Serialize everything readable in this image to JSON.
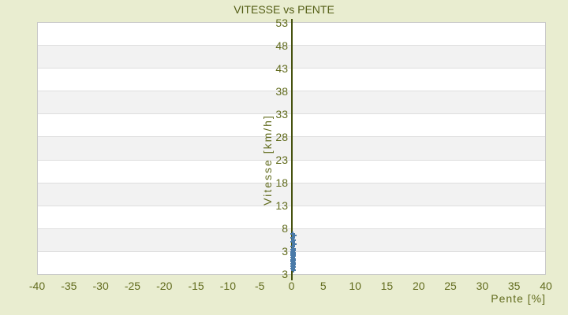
{
  "title": "VITESSE vs PENTE",
  "colors": {
    "background": "#e9edd0",
    "text_olive": "#626c1e",
    "title_olive": "#535d15",
    "axis_line": "#46520f",
    "band_gray": "#f2f2f2",
    "band_white": "#ffffff",
    "plot_border": "#c9c9c9",
    "marker_blue": "#4a7aa8"
  },
  "chart_data": {
    "type": "scatter",
    "title": "VITESSE vs PENTE",
    "xlabel": "Pente [%]",
    "ylabel": "Vitesse [km/h]",
    "xlim": [
      -40,
      40
    ],
    "x_ticks": [
      -40,
      -35,
      -30,
      -25,
      -20,
      -15,
      -10,
      -5,
      0,
      5,
      10,
      15,
      20,
      25,
      30,
      35,
      40
    ],
    "y_ticks": [
      53,
      48,
      43,
      38,
      33,
      28,
      23,
      18,
      13,
      8,
      3
    ],
    "y_min_label": "3",
    "y_top_value": 53,
    "y_units_per_band": 5,
    "grid": "alternating horizontal bands, y-axis drawn at x=0",
    "legend": null,
    "marker": "plus",
    "points": [
      {
        "pente": 0.2,
        "vitesse": 6.8
      },
      {
        "pente": 0.4,
        "vitesse": 6.4
      },
      {
        "pente": 0.2,
        "vitesse": 6.0
      },
      {
        "pente": 0.3,
        "vitesse": 5.5
      },
      {
        "pente": 0.2,
        "vitesse": 5.0
      },
      {
        "pente": 0.4,
        "vitesse": 4.5
      },
      {
        "pente": 0.2,
        "vitesse": 4.1
      },
      {
        "pente": 0.3,
        "vitesse": 3.6
      },
      {
        "pente": 0.2,
        "vitesse": 3.3
      },
      {
        "pente": 0.3,
        "vitesse": 3.1
      },
      {
        "pente": 0.2,
        "vitesse": 2.9
      },
      {
        "pente": 0.3,
        "vitesse": 2.7
      },
      {
        "pente": 0.2,
        "vitesse": 2.5
      },
      {
        "pente": 0.3,
        "vitesse": 2.3
      },
      {
        "pente": 0.2,
        "vitesse": 2.1
      },
      {
        "pente": 0.3,
        "vitesse": 1.9
      },
      {
        "pente": 0.2,
        "vitesse": 1.7
      },
      {
        "pente": 0.3,
        "vitesse": 1.3
      },
      {
        "pente": 0.2,
        "vitesse": 1.1
      },
      {
        "pente": 0.3,
        "vitesse": 0.9
      },
      {
        "pente": 0.2,
        "vitesse": 0.7
      },
      {
        "pente": 0.3,
        "vitesse": 0.5
      },
      {
        "pente": 0.2,
        "vitesse": 0.3
      },
      {
        "pente": 0.3,
        "vitesse": 0.1
      },
      {
        "pente": 0.2,
        "vitesse": -0.2
      },
      {
        "pente": 0.3,
        "vitesse": -0.5
      },
      {
        "pente": 0.2,
        "vitesse": -0.8
      },
      {
        "pente": 0.3,
        "vitesse": -1.1
      }
    ]
  }
}
